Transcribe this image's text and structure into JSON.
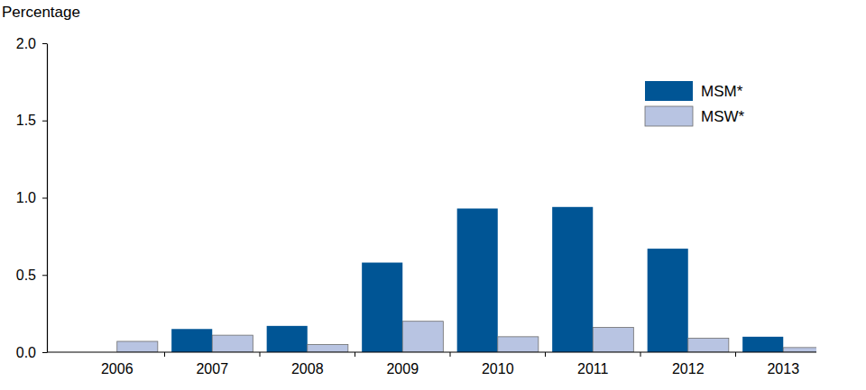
{
  "chart_data": {
    "type": "bar",
    "y_label": "Percentage",
    "categories": [
      "2006",
      "2007",
      "2008",
      "2009",
      "2010",
      "2011",
      "2012",
      "2013"
    ],
    "series": [
      {
        "name": "MSM*",
        "color": "#005595",
        "values": [
          null,
          0.15,
          0.17,
          0.58,
          0.93,
          0.94,
          0.67,
          0.1
        ]
      },
      {
        "name": "MSW*",
        "color": "#b8c4e2",
        "values": [
          0.07,
          0.11,
          0.05,
          0.2,
          0.1,
          0.16,
          0.09,
          0.03
        ]
      }
    ],
    "ylim": [
      0,
      2
    ],
    "yticks": [
      {
        "value": 0,
        "label": "0.0"
      },
      0.5,
      {
        "value": 1,
        "label": "1.0"
      },
      1.5,
      {
        "value": 2,
        "label": "2.0"
      }
    ],
    "grid": false,
    "legend": "top-right"
  }
}
